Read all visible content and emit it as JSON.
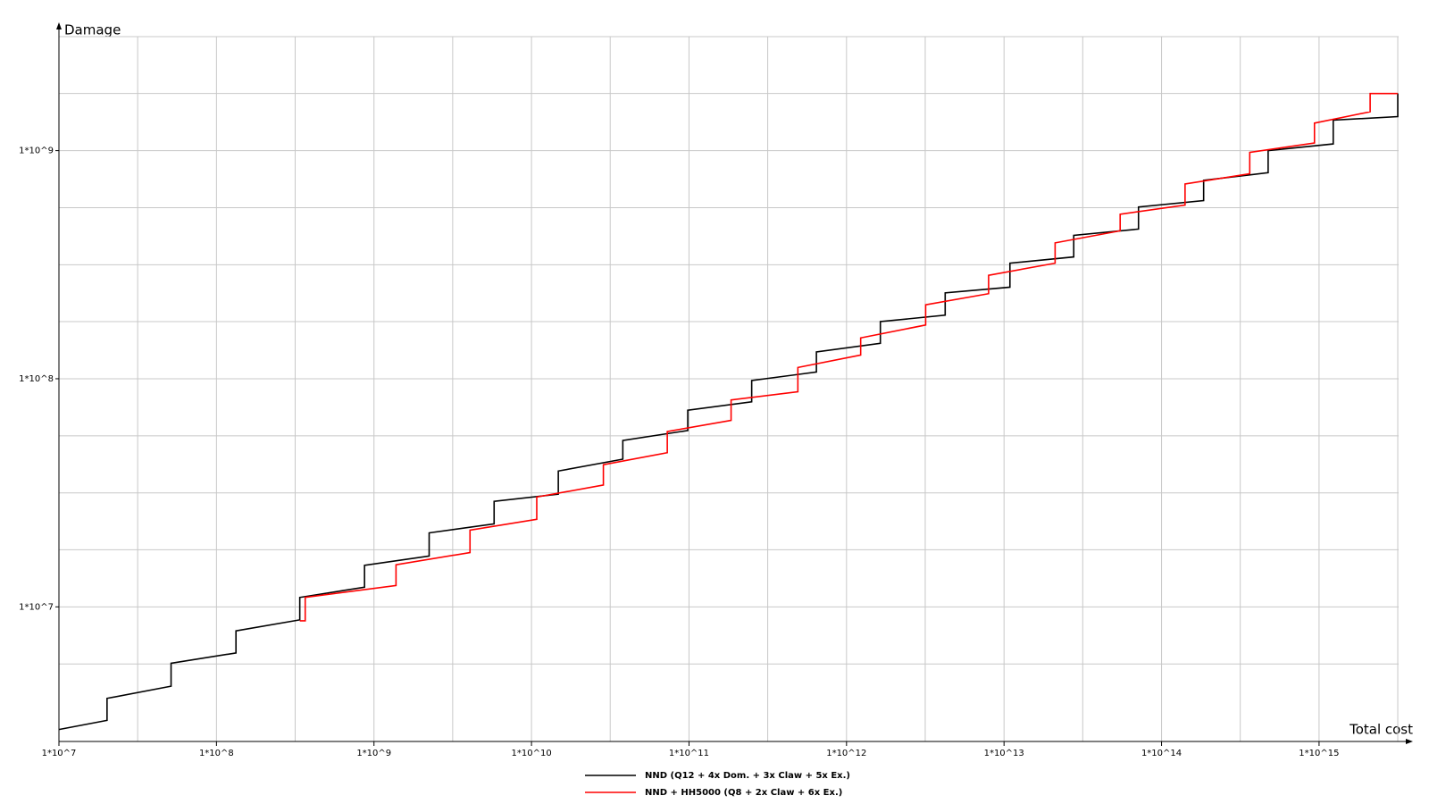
{
  "chart_data": {
    "type": "line",
    "x_label": "Total cost",
    "y_label": "Damage",
    "log_x": true,
    "log_y": true,
    "grid": true,
    "legend": "bottom",
    "xlim": [
      10000000,
      3200000000000000
    ],
    "ylim": [
      2570000,
      3160000000
    ],
    "xticks": [
      {
        "value": 10000000,
        "label": "1*10^7"
      },
      {
        "value": 100000000,
        "label": "1*10^8"
      },
      {
        "value": 1000000000,
        "label": "1*10^9"
      },
      {
        "value": 10000000000,
        "label": "1*10^10"
      },
      {
        "value": 100000000000,
        "label": "1*10^11"
      },
      {
        "value": 1000000000000,
        "label": "1*10^12"
      },
      {
        "value": 10000000000000,
        "label": "1*10^13"
      },
      {
        "value": 100000000000000,
        "label": "1*10^14"
      },
      {
        "value": 1000000000000000,
        "label": "1*10^15"
      }
    ],
    "yticks": [
      {
        "value": 10000000,
        "label": "1*10^7"
      },
      {
        "value": 100000000,
        "label": "1*10^8"
      },
      {
        "value": 1000000000,
        "label": "1*10^9"
      }
    ],
    "x_minor_grid": [
      31600000,
      316000000,
      3160000000,
      31600000000,
      316000000000,
      3160000000000,
      31600000000000,
      316000000000000,
      3160000000000000
    ],
    "y_minor_grid": [
      5620000,
      17800000,
      31600000,
      56200000,
      178000000,
      316000000,
      562000000,
      1780000000,
      3160000000
    ],
    "series": [
      {
        "name": "NND (Q12 + 4x Dom. + 3x Claw + 5x Ex.)",
        "color": "#000000",
        "x": [
          10000000.0,
          20200000.0,
          20200000.0,
          51500000.0,
          51500000.0,
          133000000.0,
          133000000.0,
          338000000.0,
          338000000.0,
          871000000.0,
          871000000.0,
          2240000000.0,
          2240000000.0,
          5790000000.0,
          5790000000.0,
          14800000000.0,
          14800000000.0,
          38000000000.0,
          38000000000.0,
          98200000000.0,
          98200000000.0,
          250000000000.0,
          250000000000.0,
          644000000000.0,
          644000000000.0,
          1640000000000.0,
          1640000000000.0,
          4230000000000.0,
          4230000000000.0,
          10900000000000.0,
          10900000000000.0,
          27700000000000.0,
          27700000000000.0,
          71400000000000.0,
          71400000000000.0,
          185000000000000.0,
          185000000000000.0,
          475000000000000.0,
          475000000000000.0,
          1230000000000000.0,
          1230000000000000.0,
          3160000000000000.0,
          3160000000000000.0
        ],
        "values": [
          2900000.0,
          3180000.0,
          3970000.0,
          4490000.0,
          5660000.0,
          6280000.0,
          7850000.0,
          8770000.0,
          11000000.0,
          12200000.0,
          15200000.0,
          16700000.0,
          21100000.0,
          23100000.0,
          29000000.0,
          31200000.0,
          39400000.0,
          44400000.0,
          53600000.0,
          59300000.0,
          72800000.0,
          79200000.0,
          98200000.0,
          107000000.0,
          131000000.0,
          143000000.0,
          178000000.0,
          190000000.0,
          238000000.0,
          252000000.0,
          321000000.0,
          342000000.0,
          425000000.0,
          453000000.0,
          566000000.0,
          604000000.0,
          741000000.0,
          800000000.0,
          1000000000.0,
          1070000000.0,
          1360000000.0,
          1410000000.0,
          1780000000.0
        ]
      },
      {
        "name": "NND + HH5000 (Q8 + 2x Claw + 6x Ex.)",
        "color": "#ff0000",
        "x": [
          338000000.0,
          366000000.0,
          366000000.0,
          1380000000.0,
          1380000000.0,
          4070000000.0,
          4070000000.0,
          10800000000.0,
          10800000000.0,
          28600000000.0,
          28600000000.0,
          72800000000.0,
          72800000000.0,
          185000000000.0,
          185000000000.0,
          491000000000.0,
          491000000000.0,
          1230000000000.0,
          1230000000000.0,
          3180000000000.0,
          3180000000000.0,
          7980000000000.0,
          7980000000000.0,
          21100000000000.0,
          21100000000000.0,
          54600000000000.0,
          54600000000000.0,
          141000000000000.0,
          141000000000000.0,
          363000000000000.0,
          363000000000000.0,
          935000000000000.0,
          935000000000000.0,
          2110000000000000.0,
          2110000000000000.0,
          3160000000000000.0
        ],
        "values": [
          8690000.0,
          8690000.0,
          11000000.0,
          12400000.0,
          15300000.0,
          17300000.0,
          21700000.0,
          24200000.0,
          30300000.0,
          34200000.0,
          42000000.0,
          47400000.0,
          58700000.0,
          65700000.0,
          80700000.0,
          87700000.0,
          112000000.0,
          127000000.0,
          151000000.0,
          172000000.0,
          211000000.0,
          236000000.0,
          284000000.0,
          321000000.0,
          394000000.0,
          445000000.0,
          526000000.0,
          577000000.0,
          714000000.0,
          792000000.0,
          982000000.0,
          1080000000.0,
          1320000000.0,
          1480000000.0,
          1780000000.0,
          1780000000.0
        ]
      }
    ]
  }
}
